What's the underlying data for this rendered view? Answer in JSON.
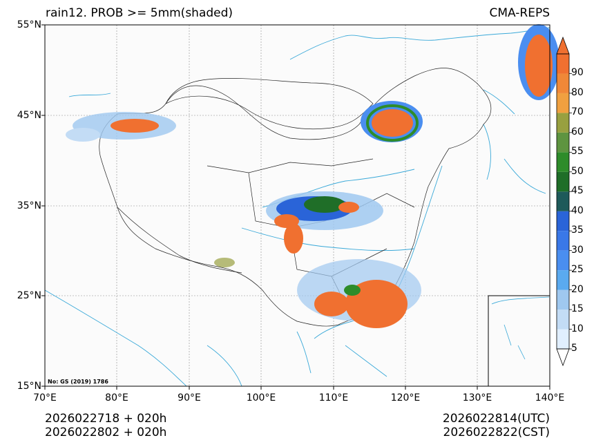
{
  "title": {
    "left": "rain12. PROB >= 5mm(shaded)",
    "right": "CMA-REPS"
  },
  "map": {
    "lat_ticks": [
      "55°N",
      "45°N",
      "35°N",
      "25°N",
      "15°N"
    ],
    "lon_ticks": [
      "70°E",
      "80°E",
      "90°E",
      "100°E",
      "110°E",
      "120°E",
      "130°E",
      "140°E"
    ],
    "lon_range": [
      70,
      140
    ],
    "lat_range": [
      15,
      55
    ],
    "credit": "No: GS (2019) 1786"
  },
  "colorbar": {
    "labels": [
      "5",
      "10",
      "15",
      "20",
      "25",
      "30",
      "35",
      "40",
      "45",
      "50",
      "55",
      "60",
      "70",
      "80",
      "90"
    ],
    "colors": [
      "#e1efff",
      "#c3dcf5",
      "#9fc8f0",
      "#5aaaf0",
      "#4a8ef0",
      "#3a78e8",
      "#2a64d8",
      "#1e5a5a",
      "#1f6e28",
      "#2e8c2a",
      "#5e9440",
      "#98a040",
      "#f0a040",
      "#f08838",
      "#f07030"
    ]
  },
  "footer": {
    "init_utc": "2026022718  +  020h",
    "init_cst": "2026022802  +  020h",
    "valid_utc": "2026022814(UTC)",
    "valid_cst": "2026022822(CST)"
  }
}
